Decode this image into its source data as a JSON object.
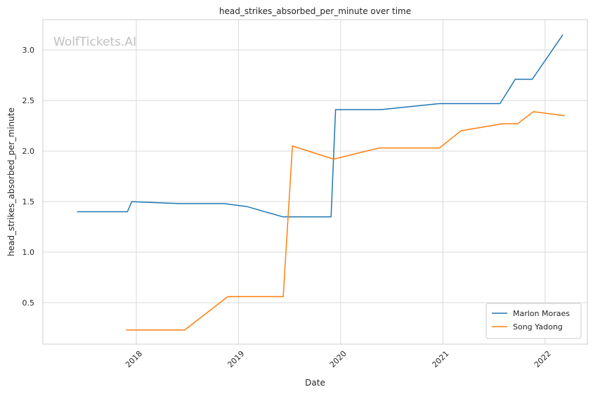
{
  "chart_data": {
    "type": "line",
    "title": "head_strikes_absorbed_per_minute over time",
    "xlabel": "Date",
    "ylabel": "head_strikes_absorbed_per_minute",
    "watermark": "WolfTickets.AI",
    "x_axis_kind": "date",
    "xlim": [
      "2017-02-01",
      "2022-06-01"
    ],
    "ylim": [
      0.09,
      3.3
    ],
    "xticks": [
      {
        "value": "2018-01-01",
        "label": "2018"
      },
      {
        "value": "2019-01-01",
        "label": "2019"
      },
      {
        "value": "2020-01-01",
        "label": "2020"
      },
      {
        "value": "2021-01-01",
        "label": "2021"
      },
      {
        "value": "2022-01-01",
        "label": "2022"
      }
    ],
    "yticks": [
      {
        "value": 0.5,
        "label": "0.5"
      },
      {
        "value": 1.0,
        "label": "1.0"
      },
      {
        "value": 1.5,
        "label": "1.5"
      },
      {
        "value": 2.0,
        "label": "2.0"
      },
      {
        "value": 2.5,
        "label": "2.5"
      },
      {
        "value": 3.0,
        "label": "3.0"
      }
    ],
    "grid": true,
    "legend_position": "lower-right",
    "series": [
      {
        "name": "Marlon Moraes",
        "color": "#1f77b4",
        "points": [
          {
            "x": "2017-06-03",
            "y": 1.4
          },
          {
            "x": "2017-11-30",
            "y": 1.4
          },
          {
            "x": "2017-12-16",
            "y": 1.5
          },
          {
            "x": "2018-06-01",
            "y": 1.48
          },
          {
            "x": "2018-11-10",
            "y": 1.48
          },
          {
            "x": "2019-02-02",
            "y": 1.45
          },
          {
            "x": "2019-06-08",
            "y": 1.35
          },
          {
            "x": "2019-11-28",
            "y": 1.35
          },
          {
            "x": "2019-12-14",
            "y": 2.41
          },
          {
            "x": "2020-05-23",
            "y": 2.41
          },
          {
            "x": "2020-12-19",
            "y": 2.47
          },
          {
            "x": "2021-07-24",
            "y": 2.47
          },
          {
            "x": "2021-09-16",
            "y": 2.71
          },
          {
            "x": "2021-11-16",
            "y": 2.71
          },
          {
            "x": "2022-03-05",
            "y": 3.15
          }
        ]
      },
      {
        "name": "Song Yadong",
        "color": "#ff7f0e",
        "points": [
          {
            "x": "2017-11-25",
            "y": 0.23
          },
          {
            "x": "2018-06-23",
            "y": 0.23
          },
          {
            "x": "2018-11-24",
            "y": 0.56
          },
          {
            "x": "2019-06-10",
            "y": 0.56
          },
          {
            "x": "2019-07-13",
            "y": 2.05
          },
          {
            "x": "2019-12-07",
            "y": 1.92
          },
          {
            "x": "2020-05-16",
            "y": 2.03
          },
          {
            "x": "2020-12-19",
            "y": 2.03
          },
          {
            "x": "2021-03-06",
            "y": 2.2
          },
          {
            "x": "2021-07-31",
            "y": 2.27
          },
          {
            "x": "2021-09-25",
            "y": 2.27
          },
          {
            "x": "2021-11-20",
            "y": 2.39
          },
          {
            "x": "2022-03-12",
            "y": 2.35
          }
        ]
      }
    ]
  }
}
